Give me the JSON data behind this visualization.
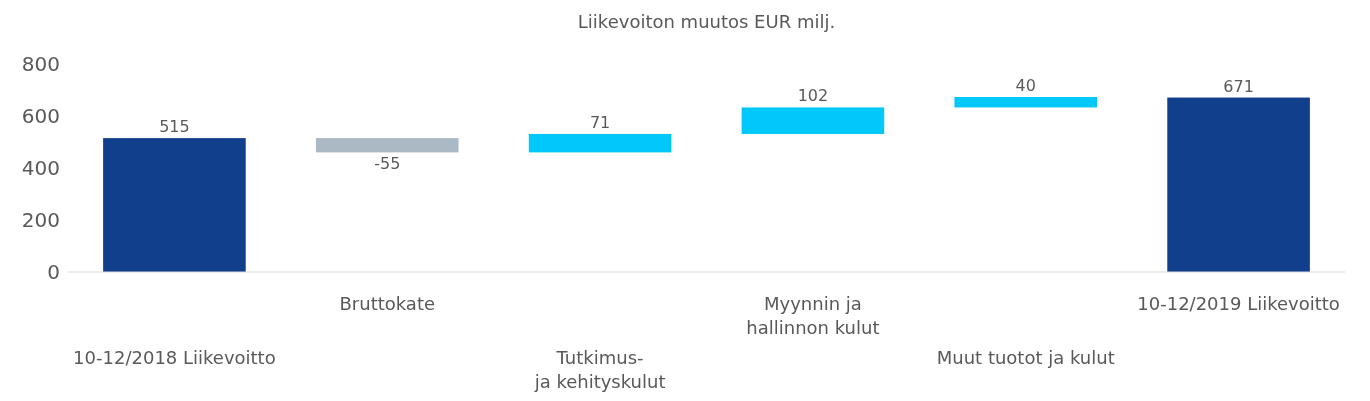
{
  "chart_data": {
    "type": "bar",
    "title": "Liikevoiton muutos EUR milj.",
    "categories": [
      "10-12/2018 Liikevoitto",
      "Bruttokate",
      "Tutkimus-\nja kehityskulut",
      "Myynnin ja\nhallinnon kulut",
      "Muut tuotot ja kulut",
      "10-12/2019 Liikevoitto"
    ],
    "values": [
      515,
      -55,
      71,
      102,
      40,
      671
    ],
    "base": [
      0,
      515,
      460,
      531,
      633,
      0
    ],
    "colors": [
      "#123f8c",
      "#aab9c3",
      "#00c8fa",
      "#00c8fa",
      "#00c8fa",
      "#123f8c"
    ],
    "ylim": [
      0,
      800
    ],
    "yticks": [
      0,
      200,
      400,
      600,
      800
    ],
    "grid": false,
    "data_labels": true
  }
}
